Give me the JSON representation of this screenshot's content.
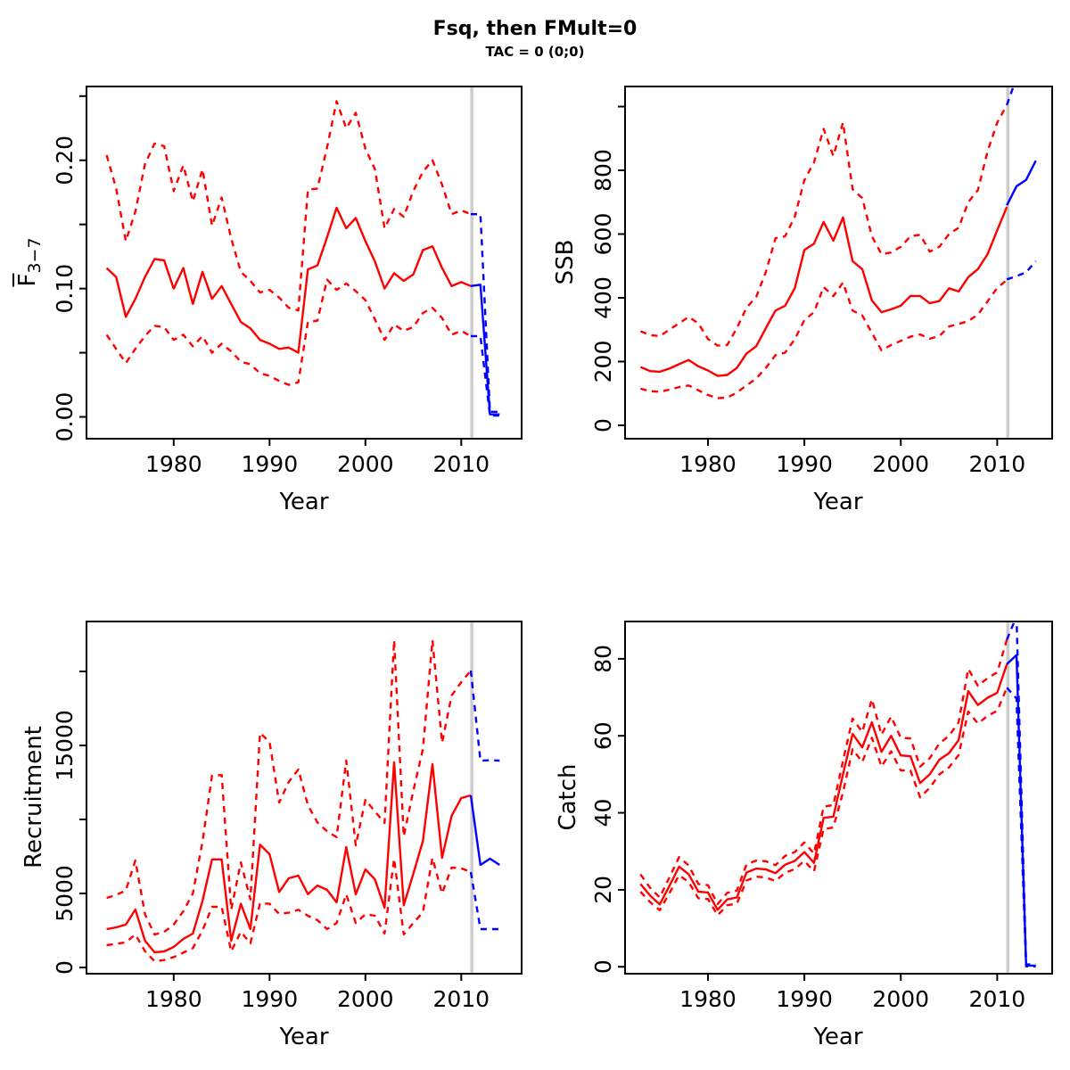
{
  "header": {
    "title": "Fsq, then FMult=0",
    "subtitle": "TAC = 0 (0;0)"
  },
  "colors": {
    "historic": "#FF0000",
    "projection": "#0000FF",
    "divider": "#CDCDCD",
    "frame": "#000000"
  },
  "chart_data": [
    {
      "name": "fbar",
      "type": "line",
      "ylabel": "F̄₃₋₇",
      "ylabel_main": "F",
      "ylabel_sub": "3−7",
      "xlabel": "Year",
      "xlim": [
        1970.9,
        2016.3
      ],
      "ylim": [
        -0.017,
        0.2575
      ],
      "xticks": {
        "values": [
          1980,
          1990,
          2000,
          2010
        ],
        "labels": [
          "1980",
          "1990",
          "2000",
          "2010"
        ]
      },
      "yticks": {
        "values": [
          0,
          0.05,
          0.1,
          0.15,
          0.2,
          0.25
        ],
        "labels": [
          "0.00",
          "",
          "0.10",
          "",
          "0.20",
          ""
        ]
      },
      "divider_x": 2011.1,
      "series": [
        {
          "name": "upper-ci",
          "role": "historic",
          "dash": true,
          "x_start": 1973,
          "y": [
            0.204,
            0.178,
            0.137,
            0.16,
            0.197,
            0.213,
            0.211,
            0.176,
            0.196,
            0.168,
            0.193,
            0.149,
            0.171,
            0.139,
            0.113,
            0.106,
            0.097,
            0.099,
            0.093,
            0.085,
            0.083,
            0.177,
            0.178,
            0.21,
            0.246,
            0.225,
            0.237,
            0.209,
            0.193,
            0.147,
            0.162,
            0.156,
            0.176,
            0.191,
            0.2,
            0.181,
            0.158,
            0.161,
            0.158
          ]
        },
        {
          "name": "median",
          "role": "historic",
          "dash": false,
          "x_start": 1973,
          "y": [
            0.116,
            0.109,
            0.078,
            0.092,
            0.109,
            0.123,
            0.122,
            0.1,
            0.116,
            0.088,
            0.113,
            0.092,
            0.102,
            0.088,
            0.074,
            0.069,
            0.06,
            0.057,
            0.053,
            0.054,
            0.05,
            0.115,
            0.118,
            0.14,
            0.163,
            0.147,
            0.155,
            0.137,
            0.121,
            0.1,
            0.112,
            0.106,
            0.111,
            0.13,
            0.133,
            0.116,
            0.102,
            0.105,
            0.102
          ]
        },
        {
          "name": "lower-ci",
          "role": "historic",
          "dash": true,
          "x_start": 1973,
          "y": [
            0.064,
            0.053,
            0.042,
            0.053,
            0.063,
            0.071,
            0.07,
            0.06,
            0.064,
            0.055,
            0.063,
            0.05,
            0.057,
            0.051,
            0.043,
            0.041,
            0.034,
            0.032,
            0.028,
            0.025,
            0.027,
            0.074,
            0.075,
            0.107,
            0.099,
            0.104,
            0.098,
            0.091,
            0.076,
            0.06,
            0.072,
            0.067,
            0.07,
            0.081,
            0.085,
            0.077,
            0.064,
            0.067,
            0.063
          ]
        },
        {
          "name": "projection-upper-ci",
          "role": "projection",
          "dash": true,
          "x_start": 2011,
          "y": [
            0.158,
            0.158,
            0.004,
            0.004
          ]
        },
        {
          "name": "projection-median",
          "role": "projection",
          "dash": false,
          "x_start": 2011,
          "y": [
            0.102,
            0.103,
            0.002,
            0.002
          ]
        },
        {
          "name": "projection-lower-ci",
          "role": "projection",
          "dash": true,
          "x_start": 2011,
          "y": [
            0.063,
            0.063,
            0.001,
            0.001
          ]
        }
      ]
    },
    {
      "name": "ssb",
      "type": "line",
      "ylabel": "SSB",
      "ylabel_main": "SSB",
      "ylabel_sub": "",
      "xlabel": "Year",
      "xlim": [
        1971.4,
        2015.7
      ],
      "ylim": [
        -42,
        1063
      ],
      "xticks": {
        "values": [
          1980,
          1990,
          2000,
          2010
        ],
        "labels": [
          "1980",
          "1990",
          "2000",
          "2010"
        ]
      },
      "yticks": {
        "values": [
          0,
          200,
          400,
          600,
          800,
          1000
        ],
        "labels": [
          "0",
          "200",
          "400",
          "600",
          "800",
          ""
        ]
      },
      "divider_x": 2011.1,
      "series": [
        {
          "name": "upper-ci",
          "role": "historic",
          "dash": true,
          "x_start": 1973,
          "y": [
            295,
            283,
            280,
            300,
            320,
            340,
            320,
            271,
            250,
            252,
            305,
            369,
            403,
            481,
            587,
            593,
            654,
            769,
            825,
            930,
            845,
            950,
            741,
            713,
            593,
            537,
            542,
            560,
            593,
            598,
            545,
            560,
            600,
            620,
            700,
            738,
            860,
            950,
            1005
          ]
        },
        {
          "name": "median",
          "role": "historic",
          "dash": false,
          "x_start": 1973,
          "y": [
            183,
            170,
            168,
            178,
            192,
            205,
            185,
            172,
            155,
            158,
            180,
            225,
            248,
            305,
            360,
            375,
            430,
            550,
            570,
            638,
            579,
            652,
            515,
            490,
            392,
            355,
            364,
            375,
            406,
            406,
            383,
            390,
            430,
            420,
            465,
            490,
            537,
            612,
            685
          ]
        },
        {
          "name": "lower-ci",
          "role": "historic",
          "dash": true,
          "x_start": 1973,
          "y": [
            115,
            107,
            105,
            112,
            120,
            125,
            110,
            95,
            85,
            87,
            103,
            125,
            147,
            180,
            220,
            228,
            270,
            330,
            355,
            434,
            405,
            448,
            360,
            345,
            290,
            235,
            252,
            265,
            278,
            285,
            272,
            280,
            310,
            318,
            327,
            347,
            389,
            431,
            456
          ]
        },
        {
          "name": "projection-upper-ci",
          "role": "projection",
          "dash": true,
          "x_start": 2011,
          "y": [
            1005,
            1090,
            1160,
            1220
          ]
        },
        {
          "name": "projection-median",
          "role": "projection",
          "dash": false,
          "x_start": 2011,
          "y": [
            690,
            750,
            770,
            830
          ]
        },
        {
          "name": "projection-lower-ci",
          "role": "projection",
          "dash": true,
          "x_start": 2011,
          "y": [
            458,
            468,
            480,
            515
          ]
        }
      ]
    },
    {
      "name": "recruitment",
      "type": "line",
      "ylabel": "Recruitment",
      "ylabel_main": "Recruitment",
      "ylabel_sub": "",
      "xlabel": "Year",
      "xlim": [
        1970.9,
        2016.3
      ],
      "ylim": [
        -420,
        23373
      ],
      "xticks": {
        "values": [
          1980,
          1990,
          2000,
          2010
        ],
        "labels": [
          "1980",
          "1990",
          "2000",
          "2010"
        ]
      },
      "yticks": {
        "values": [
          0,
          5000,
          10000,
          15000,
          20000
        ],
        "labels": [
          "0",
          "5000",
          "",
          "15000",
          ""
        ]
      },
      "divider_x": 2011.1,
      "series": [
        {
          "name": "upper-ci",
          "role": "historic",
          "dash": true,
          "x_start": 1973,
          "y": [
            4700,
            4900,
            5200,
            7228,
            3600,
            2229,
            2400,
            2900,
            3800,
            5000,
            8500,
            12950,
            13000,
            3916,
            7100,
            4600,
            15843,
            15240,
            11144,
            12530,
            13373,
            10964,
            9800,
            9200,
            8800,
            13975,
            8253,
            11325,
            10542,
            9759,
            22107,
            8855,
            11928,
            14759,
            22107,
            15180,
            18372,
            19277,
            20060
          ]
        },
        {
          "name": "median",
          "role": "historic",
          "dash": false,
          "x_start": 1973,
          "y": [
            2590,
            2711,
            2892,
            3916,
            1807,
            1024,
            1084,
            1386,
            1928,
            2289,
            4500,
            7300,
            7300,
            1800,
            4300,
            2600,
            8300,
            7650,
            5100,
            6024,
            6205,
            4950,
            5540,
            5240,
            4400,
            8130,
            4940,
            6630,
            5950,
            4040,
            13855,
            4200,
            6325,
            8554,
            13735,
            7410,
            10240,
            11445,
            11627
          ]
        },
        {
          "name": "lower-ci",
          "role": "historic",
          "dash": true,
          "x_start": 1973,
          "y": [
            1506,
            1600,
            1700,
            2229,
            1100,
            422,
            500,
            700,
            1000,
            1300,
            2500,
            4096,
            4100,
            1084,
            2410,
            1627,
            4337,
            4300,
            3614,
            3700,
            3900,
            3494,
            3200,
            2590,
            3000,
            4940,
            3000,
            3600,
            3500,
            2289,
            7349,
            2229,
            3000,
            3735,
            7400,
            5000,
            6750,
            6700,
            6445
          ]
        },
        {
          "name": "projection-upper-ci",
          "role": "projection",
          "dash": true,
          "x_start": 2011,
          "y": [
            20060,
            13975,
            14000,
            13975
          ]
        },
        {
          "name": "projection-median",
          "role": "projection",
          "dash": false,
          "x_start": 2011,
          "y": [
            11627,
            6928,
            7349,
            6930
          ]
        },
        {
          "name": "projection-lower-ci",
          "role": "projection",
          "dash": true,
          "x_start": 2011,
          "y": [
            6445,
            2590,
            2590,
            2590
          ]
        }
      ]
    },
    {
      "name": "catch",
      "type": "line",
      "ylabel": "Catch",
      "ylabel_main": "Catch",
      "ylabel_sub": "",
      "xlabel": "Year",
      "xlim": [
        1971.4,
        2015.7
      ],
      "ylim": [
        -1.8,
        89.7
      ],
      "xticks": {
        "values": [
          1980,
          1990,
          2000,
          2010
        ],
        "labels": [
          "1980",
          "1990",
          "2000",
          "2010"
        ]
      },
      "yticks": {
        "values": [
          0,
          20,
          40,
          60,
          80
        ],
        "labels": [
          "0",
          "20",
          "40",
          "60",
          "80"
        ]
      },
      "divider_x": 2011.1,
      "series": [
        {
          "name": "upper-ci",
          "role": "historic",
          "dash": true,
          "x_start": 1973,
          "y": [
            24,
            20.5,
            18,
            23.2,
            28.5,
            26.3,
            21.5,
            21.2,
            16.3,
            19.2,
            19.8,
            26.6,
            27.6,
            27.4,
            26.4,
            28.8,
            29.8,
            32.3,
            29.4,
            41.6,
            42,
            53.5,
            64.5,
            61,
            69.5,
            60.3,
            65,
            59.5,
            59.3,
            52,
            54.2,
            58,
            60,
            63.5,
            77.4,
            73,
            75,
            76.5,
            85
          ]
        },
        {
          "name": "median",
          "role": "historic",
          "dash": false,
          "x_start": 1973,
          "y": [
            21.5,
            18.5,
            16.2,
            21,
            26,
            24,
            19.5,
            19.3,
            14.8,
            17.5,
            18,
            24.5,
            25.5,
            25.3,
            24.3,
            26.5,
            27.5,
            29.8,
            27,
            38.7,
            39,
            50,
            60.5,
            57,
            63.5,
            55.8,
            60,
            54.9,
            54.7,
            47.7,
            50,
            53.8,
            55.5,
            58.9,
            71.6,
            68,
            69.9,
            71.2,
            78.6
          ]
        },
        {
          "name": "lower-ci",
          "role": "historic",
          "dash": true,
          "x_start": 1973,
          "y": [
            19.5,
            16.8,
            14.7,
            19.1,
            23.8,
            22,
            17.8,
            17.6,
            13.4,
            16,
            16.4,
            22.4,
            23.4,
            23.2,
            22.3,
            24.4,
            25.4,
            27.5,
            24.8,
            35.8,
            36.2,
            45.3,
            56.5,
            53.2,
            59.5,
            52,
            56,
            51,
            51,
            44,
            46.5,
            50,
            51.8,
            55,
            66.3,
            63.2,
            65.2,
            66.5,
            72.5
          ]
        },
        {
          "name": "projection-upper-ci",
          "role": "projection",
          "dash": true,
          "x_start": 2011,
          "y": [
            85,
            91,
            0.6,
            0.6
          ]
        },
        {
          "name": "projection-median",
          "role": "projection",
          "dash": false,
          "x_start": 2011,
          "y": [
            78.6,
            81,
            0.3,
            0.3
          ]
        },
        {
          "name": "projection-lower-ci",
          "role": "projection",
          "dash": true,
          "x_start": 2011,
          "y": [
            72.5,
            69.7,
            0.1,
            0.1
          ]
        }
      ]
    }
  ]
}
